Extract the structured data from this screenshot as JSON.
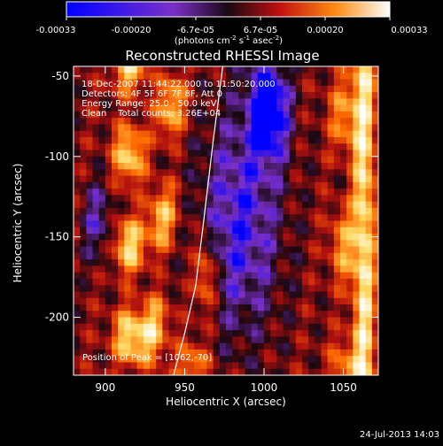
{
  "colorbar": {
    "ticks": [
      "-0.00033",
      "-0.00020",
      "-6.7e-05",
      "6.7e-05",
      "0.00020",
      "0.00033"
    ],
    "unit_prefix": "(photons cm",
    "unit_exp1": "-2",
    "unit_mid": " s",
    "unit_exp2": "-1",
    "unit_tail": " asec",
    "unit_exp3": "-2",
    "unit_close": ")"
  },
  "chart_data": {
    "type": "heatmap",
    "title": "Reconstructed RHESSI Image",
    "xlabel": "Heliocentric X (arcsec)",
    "ylabel": "Heliocentric Y (arcsec)",
    "xlim": [
      880,
      1072
    ],
    "ylim": [
      -236,
      -44
    ],
    "xticks": [
      900,
      950,
      1000,
      1050
    ],
    "yticks": [
      -50,
      -100,
      -150,
      -200
    ],
    "info_lines": [
      "18-Dec-2007 11:44:22.000 to 11:50:20.000",
      "Detectors: 4F 5F 6F 7F 8F, Att 0",
      "Energy Range: 25.0 - 50.0 keV",
      "Clean    Total counts: 3.26E+04"
    ],
    "peak_label": "Position of Peak = [1062,-70]",
    "peak": [
      1062,
      -70
    ],
    "limb_curve_x": [
      974,
      968,
      962,
      957,
      950,
      943
    ],
    "limb_curve_y": [
      -44,
      -90,
      -140,
      -180,
      -210,
      -236
    ],
    "colormap": [
      "#0000ff",
      "#7a30c8",
      "#1a0810",
      "#b01010",
      "#ff6a00",
      "#ffd860",
      "#ffffff"
    ]
  },
  "footer": {
    "timestamp": "24-Jul-2013 14:03"
  }
}
